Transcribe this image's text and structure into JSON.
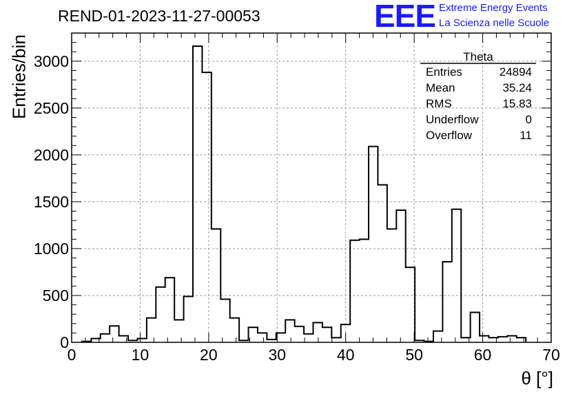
{
  "title": "REND-01-2023-11-27-00053",
  "logo": {
    "mark": "EEE",
    "line1": "Extreme Energy Events",
    "line2": "La Scienza nelle Scuole",
    "color": "#1a1aff"
  },
  "stats": {
    "name": "Theta",
    "rows": [
      {
        "label": "Entries",
        "value": "24894"
      },
      {
        "label": "Mean",
        "value": "35.24"
      },
      {
        "label": "RMS",
        "value": "15.83"
      },
      {
        "label": "Underflow",
        "value": "0"
      },
      {
        "label": "Overflow",
        "value": "11"
      }
    ]
  },
  "chart_data": {
    "type": "bar",
    "style": "step histogram",
    "title": "REND-01-2023-11-27-00053",
    "xlabel": "θ [°]",
    "ylabel": "Entries/bin",
    "xlim": [
      0,
      70
    ],
    "ylim": [
      0,
      3300
    ],
    "xticks": [
      0,
      10,
      20,
      30,
      40,
      50,
      60,
      70
    ],
    "yticks": [
      0,
      500,
      1000,
      1500,
      2000,
      2500,
      3000
    ],
    "grid": true,
    "bin_edges_start": 1.5,
    "bin_width": 1.35,
    "values": [
      10,
      40,
      90,
      175,
      70,
      20,
      40,
      260,
      590,
      690,
      240,
      490,
      3160,
      2880,
      1210,
      460,
      260,
      20,
      160,
      100,
      30,
      100,
      240,
      170,
      90,
      210,
      160,
      50,
      190,
      1090,
      1100,
      2090,
      1680,
      1210,
      1410,
      800,
      20,
      10,
      120,
      860,
      1420,
      50,
      320,
      70,
      50,
      60,
      70,
      50
    ]
  }
}
